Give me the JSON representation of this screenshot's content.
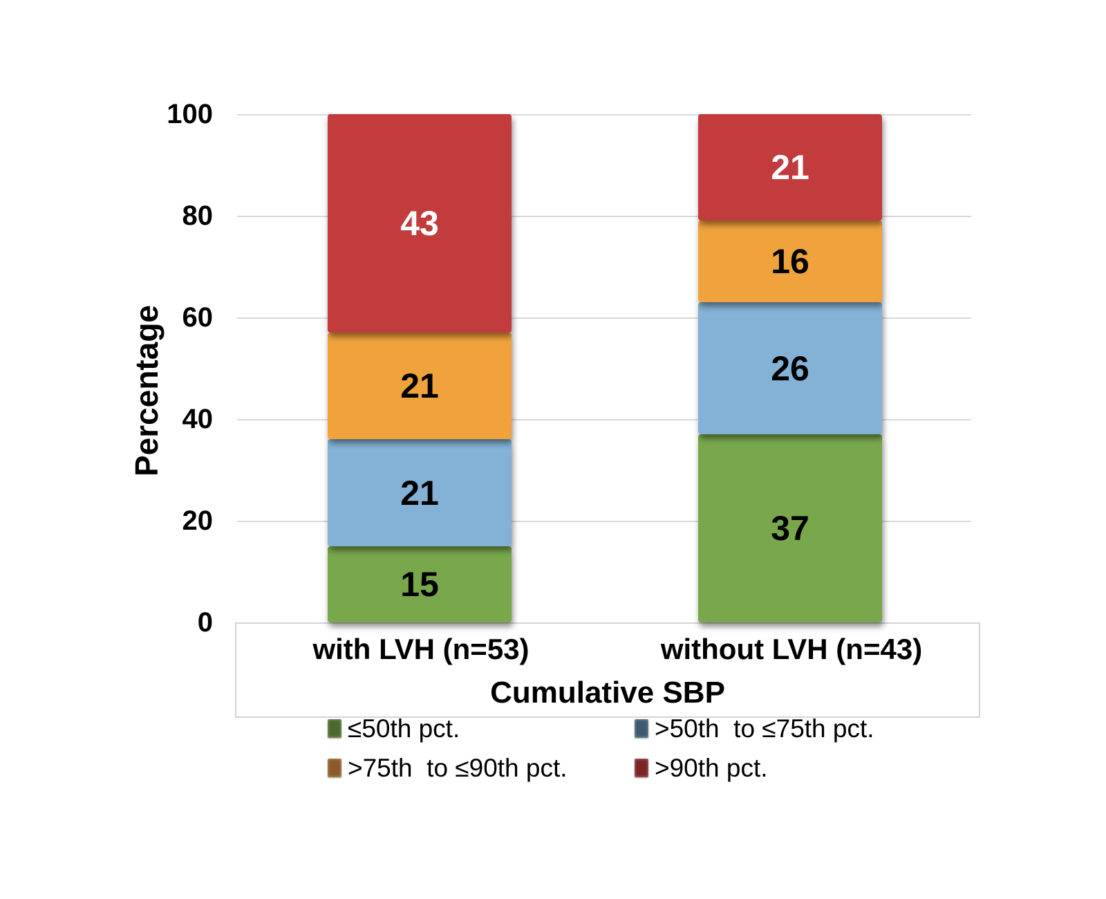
{
  "chart_data": {
    "type": "bar",
    "stacked": true,
    "title": "",
    "ylabel": "Percentage",
    "xlabel": "Cumulative SBP",
    "ylim": [
      0,
      100
    ],
    "yticks": [
      0,
      20,
      40,
      60,
      80,
      100
    ],
    "grid": "horizontal",
    "gridline_color": "#d9d9d9",
    "legend_position": "bottom",
    "categories": [
      "with LVH (n=53)",
      "without LVH (n=43)"
    ],
    "series": [
      {
        "name": "≤50th pct.",
        "values": [
          15,
          37
        ],
        "color": "#79A74B",
        "legend_color": "#4c682f",
        "label_color": "#000000"
      },
      {
        "name": ">50th  to ≤75th pct.",
        "values": [
          21,
          26
        ],
        "color": "#84B2D6",
        "legend_color": "#3e5a6d",
        "label_color": "#000000"
      },
      {
        "name": ">75th  to ≤90th pct.",
        "values": [
          21,
          16
        ],
        "color": "#F0A33C",
        "legend_color": "#8b5a28",
        "label_color": "#000000"
      },
      {
        "name": ">90th pct.",
        "values": [
          43,
          21
        ],
        "color": "#C23B3D",
        "legend_color": "#7b2426",
        "label_color": "#ffffff"
      }
    ]
  }
}
